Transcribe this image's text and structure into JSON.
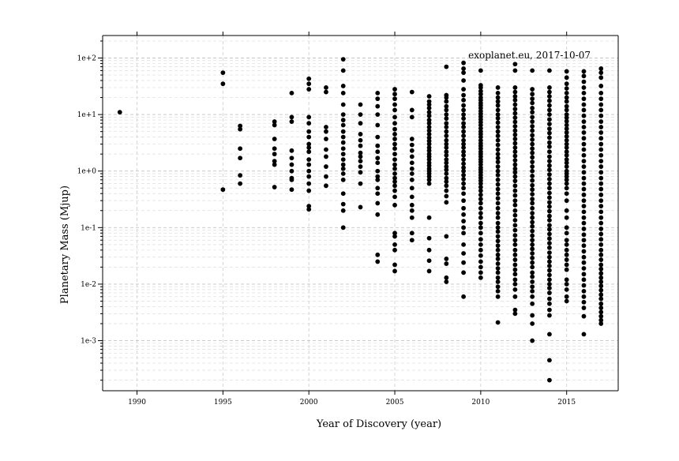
{
  "chart_data": {
    "type": "scatter",
    "title": "",
    "annotation": "exoplanet.eu, 2017-10-07",
    "xlabel": "Year of Discovery (year)",
    "ylabel": "Planetary Mass (Mjup)",
    "xlim": [
      1988,
      2018
    ],
    "ylim": [
      0.00013,
      250
    ],
    "yscale": "log",
    "grid": true,
    "xticks": [
      1990,
      1995,
      2000,
      2005,
      2010,
      2015
    ],
    "xtick_labels": [
      "1990",
      "1995",
      "2000",
      "2005",
      "2010",
      "2015"
    ],
    "yticks": [
      0.001,
      0.01,
      0.1,
      1,
      10,
      100
    ],
    "ytick_labels": [
      "1e-3",
      "1e-2",
      "1e-1",
      "1e+0",
      "1e+1",
      "1e+2"
    ],
    "marker_color": "#000000",
    "grid_color": "#cccccc",
    "series": [
      {
        "x": 1989,
        "values": [
          11
        ]
      },
      {
        "x": 1995,
        "values": [
          0.47,
          35,
          55
        ]
      },
      {
        "x": 1996,
        "values": [
          0.6,
          0.84,
          1.7,
          2.5,
          5.5,
          6.3
        ]
      },
      {
        "x": 1998,
        "values": [
          0.52,
          1.3,
          1.5,
          2,
          2.5,
          3.7,
          6.5,
          7.5
        ]
      },
      {
        "x": 1999,
        "values": [
          0.47,
          0.7,
          0.75,
          1,
          1.3,
          1.7,
          2.3,
          7.5,
          9,
          24
        ]
      },
      {
        "x": 2000,
        "values": [
          0.21,
          0.24,
          0.45,
          0.6,
          0.8,
          1,
          1.3,
          1.6,
          2.2,
          2.6,
          3,
          4,
          5,
          7,
          9,
          28,
          35,
          43
        ]
      },
      {
        "x": 2001,
        "values": [
          0.55,
          0.8,
          1.2,
          1.8,
          2.4,
          3.7,
          5,
          6,
          25,
          30
        ]
      },
      {
        "x": 2002,
        "values": [
          0.1,
          0.2,
          0.26,
          0.4,
          0.7,
          0.9,
          1.1,
          1.3,
          1.6,
          2,
          2.5,
          3.2,
          4,
          5,
          6.5,
          8,
          10,
          15,
          24,
          32,
          60,
          95
        ]
      },
      {
        "x": 2003,
        "values": [
          0.23,
          0.6,
          0.95,
          1.2,
          1.5,
          1.8,
          2.1,
          2.8,
          3.5,
          4.5,
          7,
          10,
          15
        ]
      },
      {
        "x": 2004,
        "values": [
          0.025,
          0.033,
          0.17,
          0.27,
          0.4,
          0.5,
          0.7,
          0.8,
          1,
          1.4,
          1.7,
          2.2,
          2.8,
          4,
          6.5,
          10,
          14,
          19,
          24
        ]
      },
      {
        "x": 2005,
        "values": [
          0.017,
          0.022,
          0.04,
          0.05,
          0.07,
          0.08,
          0.25,
          0.35,
          0.45,
          0.55,
          0.65,
          0.75,
          0.9,
          1.1,
          1.3,
          1.6,
          2,
          2.5,
          3,
          3.7,
          4.5,
          5.5,
          7,
          9,
          12,
          15,
          19,
          23,
          28
        ]
      },
      {
        "x": 2006,
        "values": [
          0.06,
          0.08,
          0.15,
          0.2,
          0.25,
          0.35,
          0.5,
          0.7,
          0.9,
          1.1,
          1.4,
          1.8,
          2.3,
          2.9,
          3.7,
          9,
          12,
          25
        ]
      },
      {
        "x": 2007,
        "values": [
          0.017,
          0.026,
          0.04,
          0.065,
          0.15,
          0.6,
          0.7,
          0.8,
          0.9,
          1,
          1.1,
          1.25,
          1.4,
          1.6,
          1.8,
          2,
          2.3,
          2.6,
          3,
          3.4,
          3.9,
          4.5,
          5.2,
          6,
          7,
          8,
          9.5,
          11,
          13,
          15,
          17,
          21
        ]
      },
      {
        "x": 2008,
        "values": [
          0.011,
          0.013,
          0.023,
          0.028,
          0.07,
          0.28,
          0.36,
          0.45,
          0.55,
          0.65,
          0.75,
          0.9,
          1.05,
          1.2,
          1.4,
          1.6,
          1.9,
          2.2,
          2.6,
          3,
          3.5,
          4.2,
          5,
          6,
          7,
          8.5,
          10,
          12,
          14,
          17,
          20,
          22,
          70
        ]
      },
      {
        "x": 2009,
        "values": [
          0.006,
          0.016,
          0.024,
          0.035,
          0.05,
          0.08,
          0.1,
          0.13,
          0.17,
          0.22,
          0.3,
          0.4,
          0.5,
          0.6,
          0.72,
          0.85,
          1,
          1.15,
          1.35,
          1.6,
          1.9,
          2.2,
          2.6,
          3,
          3.5,
          4.2,
          5,
          6,
          7,
          8.5,
          10,
          12,
          14.5,
          18,
          22,
          28,
          40,
          55,
          65,
          82
        ]
      },
      {
        "x": 2010,
        "values": [
          0.013,
          0.016,
          0.02,
          0.025,
          0.032,
          0.04,
          0.05,
          0.062,
          0.08,
          0.1,
          0.12,
          0.15,
          0.18,
          0.22,
          0.27,
          0.32,
          0.38,
          0.45,
          0.52,
          0.6,
          0.68,
          0.76,
          0.85,
          0.95,
          1.05,
          1.15,
          1.3,
          1.45,
          1.6,
          1.8,
          2,
          2.2,
          2.5,
          2.8,
          3.1,
          3.5,
          4,
          4.5,
          5,
          5.7,
          6.5,
          7.3,
          8.2,
          9.2,
          10.3,
          11.5,
          13,
          14.5,
          16,
          18,
          20,
          23,
          26,
          30,
          33,
          60
        ]
      },
      {
        "x": 2011,
        "values": [
          0.0021,
          0.006,
          0.0075,
          0.009,
          0.011,
          0.013,
          0.016,
          0.019,
          0.023,
          0.028,
          0.033,
          0.04,
          0.048,
          0.058,
          0.07,
          0.085,
          0.1,
          0.12,
          0.15,
          0.18,
          0.22,
          0.27,
          0.33,
          0.4,
          0.48,
          0.58,
          0.7,
          0.85,
          1,
          1.2,
          1.45,
          1.7,
          2,
          2.4,
          2.9,
          3.5,
          4.2,
          5,
          6,
          7.2,
          8.6,
          10,
          12,
          14.5,
          17,
          20,
          24,
          30
        ]
      },
      {
        "x": 2012,
        "values": [
          0.003,
          0.0035,
          0.006,
          0.008,
          0.01,
          0.012,
          0.015,
          0.018,
          0.022,
          0.027,
          0.033,
          0.04,
          0.05,
          0.06,
          0.073,
          0.09,
          0.11,
          0.135,
          0.165,
          0.2,
          0.25,
          0.3,
          0.37,
          0.45,
          0.55,
          0.67,
          0.8,
          0.95,
          1.1,
          1.3,
          1.55,
          1.85,
          2.2,
          2.6,
          3.1,
          3.7,
          4.4,
          5.2,
          6.2,
          7.4,
          8.8,
          10.5,
          12.5,
          15,
          18,
          21,
          25,
          30,
          60,
          78
        ]
      },
      {
        "x": 2013,
        "values": [
          0.001,
          0.002,
          0.0028,
          0.0045,
          0.006,
          0.0075,
          0.009,
          0.011,
          0.0135,
          0.016,
          0.02,
          0.024,
          0.029,
          0.035,
          0.042,
          0.05,
          0.06,
          0.072,
          0.087,
          0.105,
          0.125,
          0.15,
          0.18,
          0.22,
          0.27,
          0.32,
          0.39,
          0.47,
          0.56,
          0.68,
          0.82,
          1,
          1.2,
          1.45,
          1.75,
          2.1,
          2.5,
          3,
          3.6,
          4.3,
          5.2,
          6.2,
          7.5,
          9,
          11,
          13,
          16,
          19,
          23,
          28,
          60
        ]
      },
      {
        "x": 2014,
        "values": [
          0.0002,
          0.00045,
          0.0013,
          0.0028,
          0.0035,
          0.0045,
          0.0055,
          0.007,
          0.0085,
          0.01,
          0.012,
          0.0145,
          0.0175,
          0.021,
          0.025,
          0.03,
          0.036,
          0.044,
          0.053,
          0.064,
          0.077,
          0.093,
          0.11,
          0.135,
          0.16,
          0.195,
          0.235,
          0.28,
          0.34,
          0.41,
          0.5,
          0.6,
          0.72,
          0.87,
          1.05,
          1.25,
          1.5,
          1.8,
          2.2,
          2.7,
          3.2,
          3.9,
          4.7,
          5.6,
          6.8,
          8.2,
          10,
          12,
          14.5,
          17.5,
          21,
          25,
          30,
          60
        ]
      },
      {
        "x": 2015,
        "values": [
          0.005,
          0.006,
          0.008,
          0.01,
          0.012,
          0.018,
          0.022,
          0.027,
          0.033,
          0.04,
          0.05,
          0.06,
          0.08,
          0.1,
          0.15,
          0.2,
          0.3,
          0.4,
          0.5,
          0.6,
          0.7,
          0.8,
          0.9,
          1,
          1.2,
          1.4,
          1.6,
          1.9,
          2.2,
          2.6,
          3,
          3.5,
          4.1,
          4.8,
          5.6,
          6.5,
          7.6,
          8.8,
          10,
          12,
          14,
          17,
          20,
          24,
          29,
          35,
          45,
          58
        ]
      },
      {
        "x": 2016,
        "values": [
          0.0013,
          0.0027,
          0.0038,
          0.0048,
          0.006,
          0.0075,
          0.0095,
          0.012,
          0.015,
          0.019,
          0.024,
          0.03,
          0.038,
          0.048,
          0.06,
          0.075,
          0.095,
          0.12,
          0.15,
          0.19,
          0.24,
          0.3,
          0.38,
          0.48,
          0.6,
          0.75,
          0.95,
          1.2,
          1.5,
          1.9,
          2.4,
          3,
          3.8,
          4.8,
          6,
          7.5,
          9.5,
          12,
          15,
          19,
          24,
          30,
          38,
          48,
          58
        ]
      },
      {
        "x": 2017,
        "values": [
          0.002,
          0.0023,
          0.0027,
          0.0032,
          0.0038,
          0.0045,
          0.0055,
          0.0065,
          0.0078,
          0.0093,
          0.011,
          0.013,
          0.0155,
          0.0185,
          0.022,
          0.027,
          0.033,
          0.04,
          0.05,
          0.062,
          0.077,
          0.095,
          0.12,
          0.15,
          0.19,
          0.24,
          0.3,
          0.38,
          0.48,
          0.6,
          0.75,
          0.95,
          1.2,
          1.5,
          1.9,
          2.4,
          3,
          3.8,
          4.8,
          6,
          7.5,
          9.5,
          12,
          15,
          19,
          24,
          32,
          45,
          55,
          65
        ]
      }
    ]
  }
}
